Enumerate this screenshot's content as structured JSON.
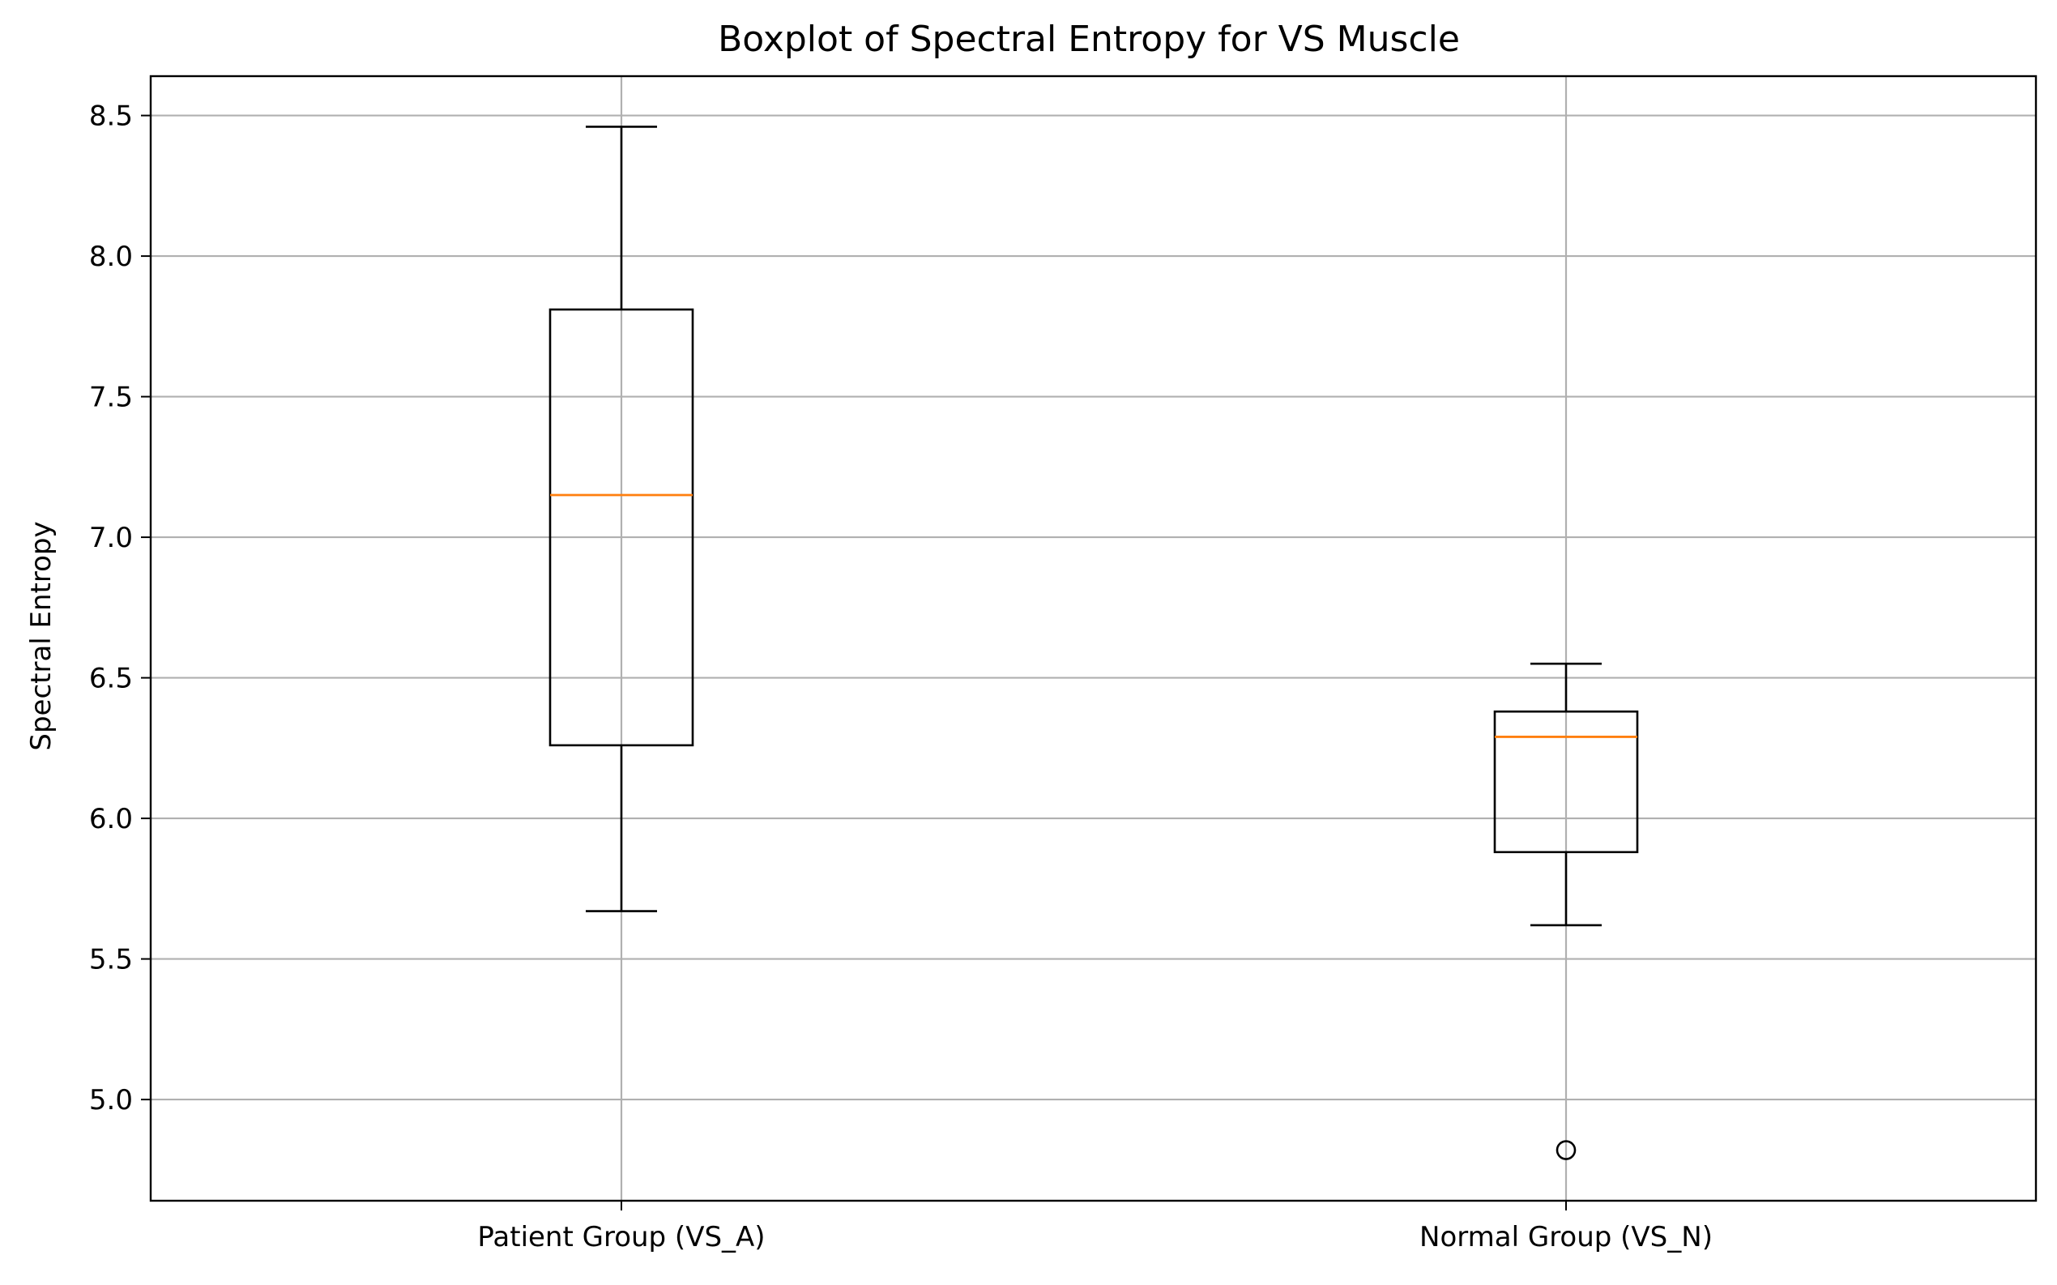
{
  "chart_data": {
    "type": "box",
    "title": "Boxplot of Spectral Entropy for VS Muscle",
    "xlabel": "",
    "ylabel": "Spectral Entropy",
    "ylim": [
      4.64,
      8.64
    ],
    "yticks": [
      5.0,
      5.5,
      6.0,
      6.5,
      7.0,
      7.5,
      8.0,
      8.5
    ],
    "ytick_labels": [
      "5.0",
      "5.5",
      "6.0",
      "6.5",
      "7.0",
      "7.5",
      "8.0",
      "8.5"
    ],
    "grid": true,
    "categories": [
      "Patient Group (VS_A)",
      "Normal Group (VS_N)"
    ],
    "boxes": [
      {
        "whisker_low": 5.67,
        "q1": 6.26,
        "median": 7.15,
        "q3": 7.81,
        "whisker_high": 8.46,
        "outliers": []
      },
      {
        "whisker_low": 5.62,
        "q1": 5.88,
        "median": 6.29,
        "q3": 6.38,
        "whisker_high": 6.55,
        "outliers": [
          4.82
        ]
      }
    ],
    "colors": {
      "box": "#000000",
      "median": "#ff7f0e",
      "grid": "#b0b0b0"
    }
  }
}
